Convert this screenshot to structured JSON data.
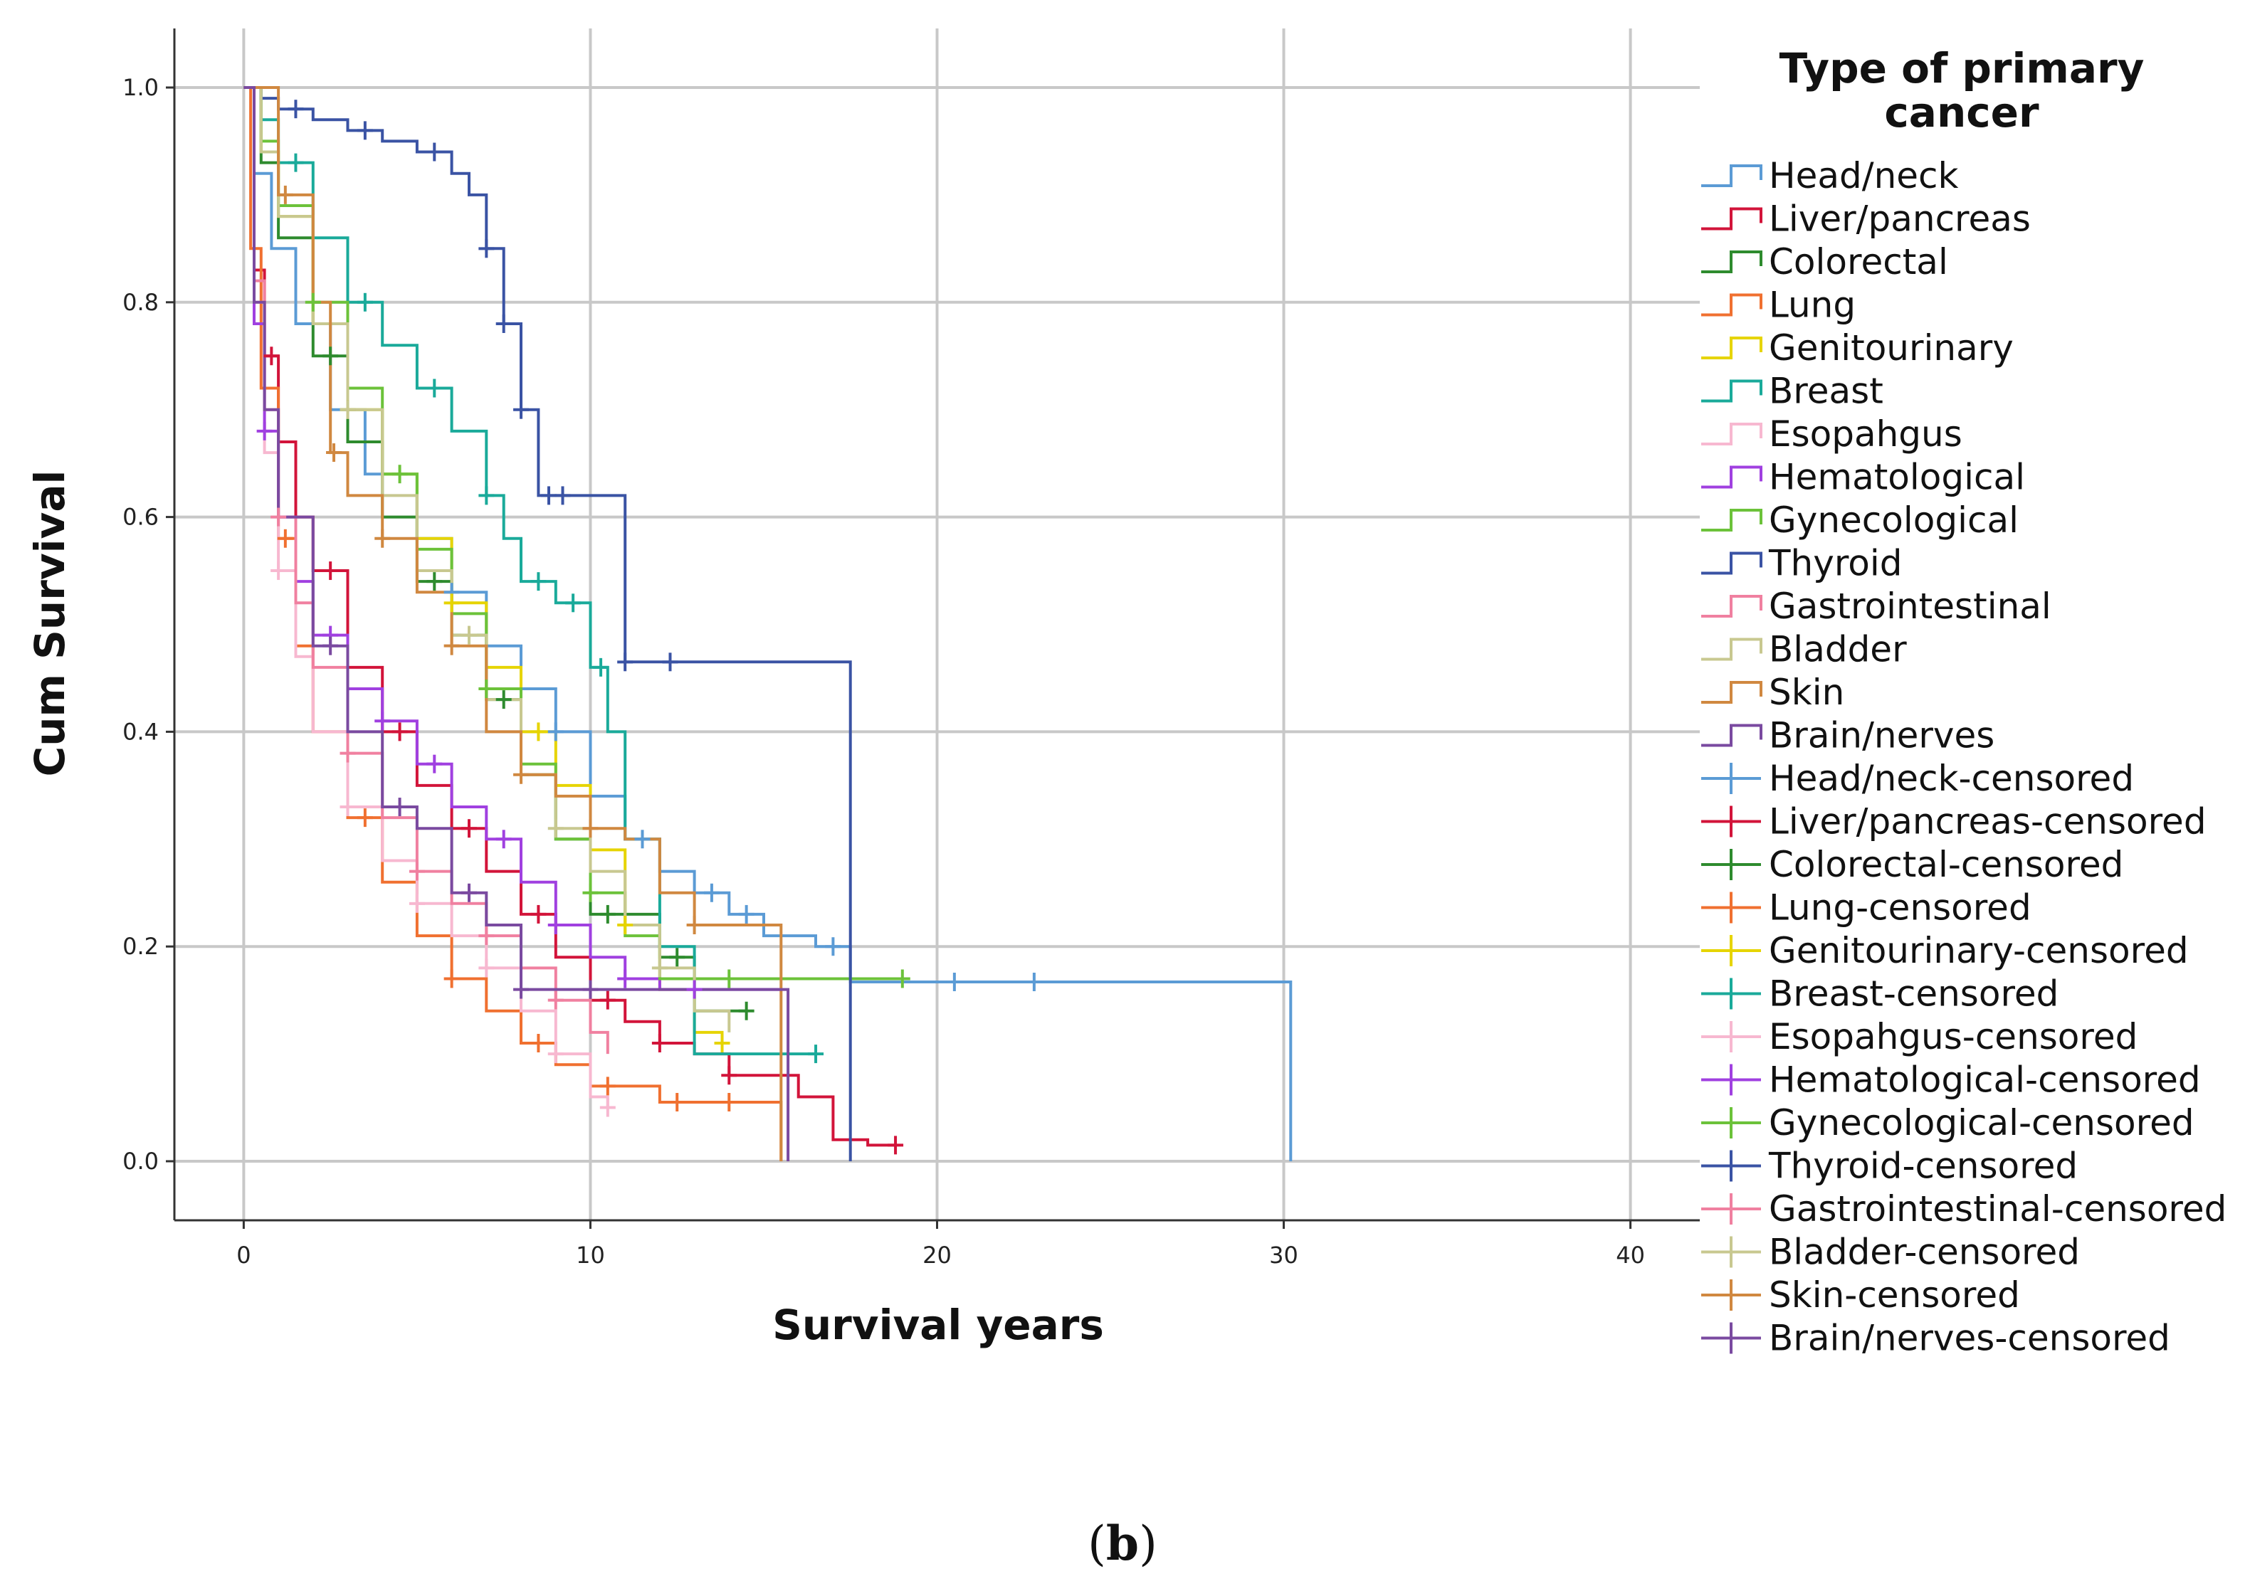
{
  "chart_data": {
    "type": "line",
    "subtype": "kaplan-meier step survival curves",
    "xlabel": "Survival years",
    "ylabel": "Cum Survival",
    "xlim": [
      -2,
      42
    ],
    "ylim": [
      -0.055,
      1.055
    ],
    "xticks": [
      0,
      10,
      20,
      30,
      40
    ],
    "xtick_labels": [
      "0",
      "10",
      "20",
      "30",
      "40"
    ],
    "yticks": [
      0.0,
      0.2,
      0.4,
      0.6,
      0.8,
      1.0
    ],
    "ytick_labels": [
      "0.0",
      "0.2",
      "0.4",
      "0.6",
      "0.8",
      "1.0"
    ],
    "grid": true,
    "legend_title": "Type of primary cancer",
    "legend_position": "right",
    "caption": "(b)",
    "series": [
      {
        "name": "Head/neck",
        "censored_label": "Head/neck-censored",
        "color": "#5b9bd5",
        "x": [
          0,
          0.3,
          0.8,
          1.5,
          2.5,
          3.5,
          5,
          6,
          7,
          8,
          9,
          10,
          11,
          12,
          13,
          14,
          15,
          16.5,
          17.5,
          30.2,
          30.2
        ],
        "y": [
          1.0,
          0.92,
          0.85,
          0.78,
          0.7,
          0.64,
          0.58,
          0.53,
          0.48,
          0.44,
          0.4,
          0.34,
          0.3,
          0.27,
          0.25,
          0.23,
          0.21,
          0.2,
          0.167,
          0.167,
          0.0
        ],
        "censor_x": [
          3,
          6,
          9,
          11.5,
          13.5,
          14.5,
          17,
          20.5,
          22.8
        ]
      },
      {
        "name": "Liver/pancreas",
        "censored_label": "Liver/pancreas-censored",
        "color": "#d2143a",
        "x": [
          0,
          0.3,
          0.6,
          1,
          1.5,
          2,
          3,
          4,
          5,
          6,
          7,
          8,
          9,
          10,
          11,
          12,
          13,
          14,
          15,
          16,
          17,
          18,
          18.8
        ],
        "y": [
          1.0,
          0.83,
          0.75,
          0.67,
          0.6,
          0.55,
          0.46,
          0.4,
          0.35,
          0.31,
          0.27,
          0.23,
          0.19,
          0.15,
          0.13,
          0.11,
          0.1,
          0.08,
          0.08,
          0.06,
          0.02,
          0.015,
          0.015
        ],
        "censor_x": [
          0.8,
          2.5,
          4.5,
          6.5,
          8.5,
          10.5,
          12,
          14,
          18.8
        ]
      },
      {
        "name": "Colorectal",
        "censored_label": "Colorectal-censored",
        "color": "#2e8b2e",
        "x": [
          0,
          0.5,
          1,
          2,
          3,
          4,
          5,
          6,
          7,
          8,
          9,
          10,
          11,
          12,
          13,
          14.5
        ],
        "y": [
          1.0,
          0.93,
          0.86,
          0.75,
          0.67,
          0.6,
          0.54,
          0.49,
          0.43,
          0.36,
          0.3,
          0.23,
          0.23,
          0.19,
          0.14,
          0.14
        ],
        "censor_x": [
          2.5,
          5.5,
          7.5,
          10.5,
          12.5,
          14.5
        ]
      },
      {
        "name": "Lung",
        "censored_label": "Lung-censored",
        "color": "#f07030",
        "x": [
          0,
          0.2,
          0.5,
          1,
          1.5,
          2,
          3,
          4,
          5,
          6,
          7,
          8,
          9,
          10,
          11,
          12,
          13,
          14,
          15,
          15.5,
          15.5
        ],
        "y": [
          1.0,
          0.85,
          0.72,
          0.58,
          0.48,
          0.4,
          0.32,
          0.26,
          0.21,
          0.17,
          0.14,
          0.11,
          0.09,
          0.07,
          0.07,
          0.055,
          0.055,
          0.055,
          0.055,
          0.055,
          0.0
        ],
        "censor_x": [
          1.2,
          3.5,
          6,
          8.5,
          10.5,
          12.5,
          14
        ]
      },
      {
        "name": "Genitourinary",
        "censored_label": "Genitourinary-censored",
        "color": "#e6d400",
        "x": [
          0,
          0.5,
          1,
          2,
          3,
          4,
          5,
          6,
          7,
          8,
          9,
          10,
          11,
          12,
          13,
          13.8
        ],
        "y": [
          1.0,
          0.94,
          0.88,
          0.78,
          0.7,
          0.64,
          0.58,
          0.52,
          0.46,
          0.4,
          0.35,
          0.29,
          0.22,
          0.16,
          0.12,
          0.11
        ],
        "censor_x": [
          3,
          6,
          8.5,
          11,
          13.8
        ]
      },
      {
        "name": "Breast",
        "censored_label": "Breast-censored",
        "color": "#1aaa9a",
        "x": [
          0,
          0.5,
          1,
          2,
          3,
          4,
          5,
          6,
          7,
          7.5,
          8,
          9,
          10,
          10.5,
          11,
          12,
          13,
          15,
          16.5
        ],
        "y": [
          1.0,
          0.97,
          0.93,
          0.86,
          0.8,
          0.76,
          0.72,
          0.68,
          0.62,
          0.58,
          0.54,
          0.52,
          0.46,
          0.4,
          0.3,
          0.2,
          0.1,
          0.1,
          0.1
        ],
        "censor_x": [
          1.5,
          3.5,
          5.5,
          7,
          8.5,
          9.5,
          10.3,
          16.5
        ]
      },
      {
        "name": "Esopahgus",
        "censored_label": "Esopahgus-censored",
        "color": "#f7b8d0",
        "x": [
          0,
          0.3,
          0.6,
          1,
          1.5,
          2,
          3,
          4,
          5,
          6,
          7,
          8,
          9,
          10,
          10.5
        ],
        "y": [
          1.0,
          0.8,
          0.66,
          0.55,
          0.47,
          0.4,
          0.33,
          0.28,
          0.24,
          0.21,
          0.18,
          0.14,
          0.1,
          0.06,
          0.05
        ],
        "censor_x": [
          1,
          3,
          5,
          7,
          9,
          10.5
        ]
      },
      {
        "name": "Hematological",
        "censored_label": "Hematological-censored",
        "color": "#a040e0",
        "x": [
          0,
          0.3,
          0.6,
          1,
          1.5,
          2,
          3,
          4,
          5,
          6,
          7,
          8,
          9,
          10,
          11,
          12,
          15.5
        ],
        "y": [
          1.0,
          0.78,
          0.68,
          0.6,
          0.54,
          0.49,
          0.44,
          0.41,
          0.37,
          0.33,
          0.3,
          0.26,
          0.22,
          0.19,
          0.17,
          0.16,
          0.16
        ],
        "censor_x": [
          0.6,
          2.5,
          4,
          5.5,
          7.5,
          9,
          11,
          13
        ]
      },
      {
        "name": "Gynecological",
        "censored_label": "Gynecological-censored",
        "color": "#6cc23a",
        "x": [
          0,
          0.5,
          1,
          2,
          3,
          4,
          5,
          6,
          7,
          8,
          9,
          10,
          11,
          12,
          19
        ],
        "y": [
          1.0,
          0.95,
          0.89,
          0.8,
          0.72,
          0.64,
          0.57,
          0.51,
          0.44,
          0.37,
          0.3,
          0.25,
          0.21,
          0.17,
          0.17
        ],
        "censor_x": [
          2,
          4.5,
          7,
          10,
          14,
          19
        ]
      },
      {
        "name": "Thyroid",
        "censored_label": "Thyroid-censored",
        "color": "#3a53a4",
        "x": [
          0,
          0.5,
          1,
          2,
          3,
          4,
          5,
          6,
          6.5,
          7,
          7.5,
          8,
          8.5,
          10.5,
          11,
          17.5,
          17.5
        ],
        "y": [
          1.0,
          0.99,
          0.98,
          0.97,
          0.96,
          0.95,
          0.94,
          0.92,
          0.9,
          0.85,
          0.78,
          0.7,
          0.62,
          0.62,
          0.465,
          0.465,
          0.0
        ],
        "censor_x": [
          1.5,
          3.5,
          5.5,
          7,
          7.5,
          8,
          8.8,
          9.2,
          11,
          12.3
        ]
      },
      {
        "name": "Gastrointestinal",
        "censored_label": "Gastrointestinal-censored",
        "color": "#f080a0",
        "x": [
          0,
          0.3,
          0.6,
          1,
          1.5,
          2,
          3,
          4,
          5,
          6,
          7,
          8,
          9,
          10,
          10.5
        ],
        "y": [
          1.0,
          0.82,
          0.7,
          0.6,
          0.52,
          0.46,
          0.38,
          0.32,
          0.27,
          0.24,
          0.21,
          0.18,
          0.15,
          0.12,
          0.1
        ],
        "censor_x": [
          1,
          3,
          5,
          7,
          9
        ]
      },
      {
        "name": "Bladder",
        "censored_label": "Bladder-censored",
        "color": "#c8c890",
        "x": [
          0,
          0.5,
          1,
          2,
          3,
          4,
          5,
          6,
          7,
          8,
          9,
          10,
          11,
          12,
          13,
          14
        ],
        "y": [
          1.0,
          0.94,
          0.88,
          0.78,
          0.7,
          0.62,
          0.55,
          0.49,
          0.43,
          0.36,
          0.31,
          0.27,
          0.22,
          0.18,
          0.14,
          0.12
        ],
        "censor_x": [
          3,
          6.5,
          9,
          12
        ]
      },
      {
        "name": "Skin",
        "censored_label": "Skin-censored",
        "color": "#d08840",
        "x": [
          0,
          1,
          2,
          2.5,
          3,
          4,
          5,
          6,
          7,
          8,
          9,
          10,
          11,
          12,
          13,
          14,
          15.5,
          15.5
        ],
        "y": [
          1.0,
          0.9,
          0.8,
          0.66,
          0.62,
          0.58,
          0.53,
          0.48,
          0.4,
          0.36,
          0.34,
          0.31,
          0.3,
          0.25,
          0.22,
          0.22,
          0.22,
          0.0
        ],
        "censor_x": [
          1.2,
          2.6,
          4,
          6,
          8,
          10,
          13
        ]
      },
      {
        "name": "Brain/nerves",
        "censored_label": "Brain/nerves-censored",
        "color": "#7a4aa0",
        "x": [
          0,
          0.3,
          0.6,
          1,
          2,
          3,
          4,
          5,
          6,
          7,
          8,
          9,
          15.5,
          15.7,
          15.7
        ],
        "y": [
          1.0,
          0.8,
          0.7,
          0.6,
          0.48,
          0.4,
          0.33,
          0.31,
          0.25,
          0.22,
          0.16,
          0.16,
          0.16,
          0.16,
          0.0
        ],
        "censor_x": [
          2.5,
          4.5,
          6.5,
          8,
          10
        ]
      }
    ]
  }
}
